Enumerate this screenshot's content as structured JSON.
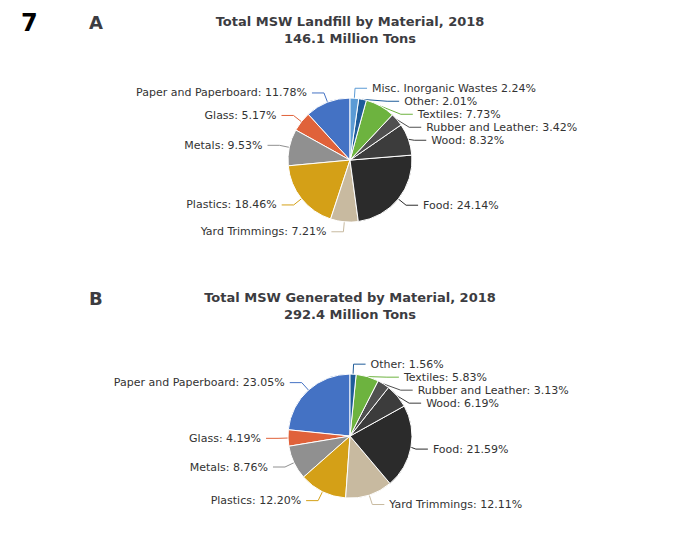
{
  "annotations": [
    "7"
  ],
  "chart_data": [
    {
      "type": "pie",
      "title": "Total MSW Landfill by Material, 2018\n146.1 Million Tons",
      "annotations": [
        "A"
      ],
      "categories": [
        "Paper and Paperboard",
        "Glass",
        "Metals",
        "Plastics",
        "Yard Trimmings",
        "Food",
        "Wood",
        "Rubber and Leather",
        "Textiles",
        "Other",
        "Misc. Inorganic Wastes"
      ],
      "values": [
        11.78,
        5.17,
        9.53,
        18.46,
        7.21,
        24.14,
        8.32,
        3.42,
        7.73,
        2.01,
        2.24
      ],
      "value_labels": [
        "Paper and Paperboard: 11.78%",
        "Glass: 5.17%",
        "Metals: 9.53%",
        "Plastics: 18.46%",
        "Yard Trimmings: 7.21%",
        "Food: 24.14%",
        "Wood: 8.32%",
        "Rubber and Leather: 3.42%",
        "Textiles: 7.73%",
        "Other: 2.01%",
        "Misc. Inorganic Wastes 2.24%"
      ],
      "colors": [
        "#4472C4",
        "#E0623A",
        "#909090",
        "#D4A017",
        "#C8BAA0",
        "#2B2B2B",
        "#3C3C3C",
        "#505050",
        "#6DB33F",
        "#1F5C99",
        "#5B9BD5"
      ],
      "data_labels": true
    },
    {
      "type": "pie",
      "title": "Total MSW Generated by Material, 2018\n292.4 Million Tons",
      "annotations": [
        "B"
      ],
      "categories": [
        "Paper and Paperboard",
        "Glass",
        "Metals",
        "Plastics",
        "Yard Trimmings",
        "Food",
        "Wood",
        "Rubber and Leather",
        "Textiles",
        "Other"
      ],
      "values": [
        23.05,
        4.19,
        8.76,
        12.2,
        12.11,
        21.59,
        6.19,
        3.13,
        5.83,
        1.56
      ],
      "value_labels": [
        "Paper and Paperboard: 23.05%",
        "Glass: 4.19%",
        "Metals: 8.76%",
        "Plastics: 12.20%",
        "Yard Trimmings: 12.11%",
        "Food: 21.59%",
        "Wood: 6.19%",
        "Rubber and Leather: 3.13%",
        "Textiles: 5.83%",
        "Other: 1.56%"
      ],
      "colors": [
        "#4472C4",
        "#E0623A",
        "#909090",
        "#D4A017",
        "#C8BAA0",
        "#2B2B2B",
        "#3C3C3C",
        "#505050",
        "#6DB33F",
        "#1F5C99"
      ],
      "data_labels": true
    }
  ]
}
